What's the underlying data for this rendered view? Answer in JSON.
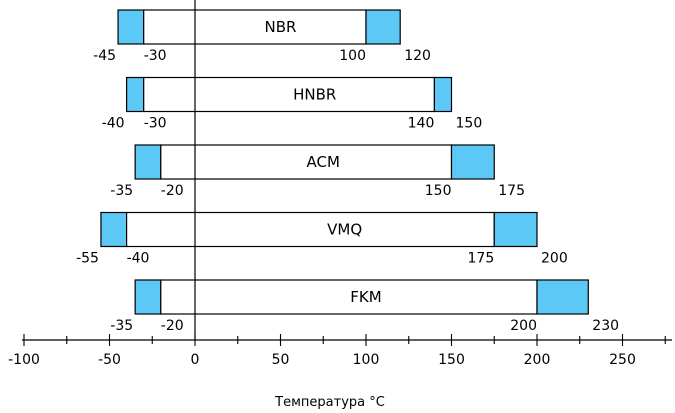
{
  "chart_data": {
    "type": "range-bar",
    "xlabel": "Температура °C",
    "xlim": [
      -100,
      275
    ],
    "xticks": [
      -100,
      -50,
      0,
      50,
      100,
      150,
      200,
      250
    ],
    "xtick_labels": [
      "-100",
      "-50",
      "0",
      "50",
      "100",
      "150",
      "200",
      "250"
    ],
    "colors": {
      "extended": "#5bc8f5",
      "core": "#ffffff",
      "stroke": "#000000"
    },
    "bars": [
      {
        "name": "NBR",
        "outer_min": -45,
        "inner_min": -30,
        "inner_max": 100,
        "outer_max": 120,
        "label_outer_min": "-45",
        "label_inner_min": "-30",
        "label_inner_max": "100",
        "label_outer_max": "120"
      },
      {
        "name": "HNBR",
        "outer_min": -40,
        "inner_min": -30,
        "inner_max": 140,
        "outer_max": 150,
        "label_outer_min": "-40",
        "label_inner_min": "-30",
        "label_inner_max": "140",
        "label_outer_max": "150"
      },
      {
        "name": "ACM",
        "outer_min": -35,
        "inner_min": -20,
        "inner_max": 150,
        "outer_max": 175,
        "label_outer_min": "-35",
        "label_inner_min": "-20",
        "label_inner_max": "150",
        "label_outer_max": "175"
      },
      {
        "name": "VMQ",
        "outer_min": -55,
        "inner_min": -40,
        "inner_max": 175,
        "outer_max": 200,
        "label_outer_min": "-55",
        "label_inner_min": "-40",
        "label_inner_max": "175",
        "label_outer_max": "200"
      },
      {
        "name": "FKM",
        "outer_min": -35,
        "inner_min": -20,
        "inner_max": 200,
        "outer_max": 230,
        "label_outer_min": "-35",
        "label_inner_min": "-20",
        "label_inner_max": "200",
        "label_outer_max": "230"
      }
    ]
  }
}
